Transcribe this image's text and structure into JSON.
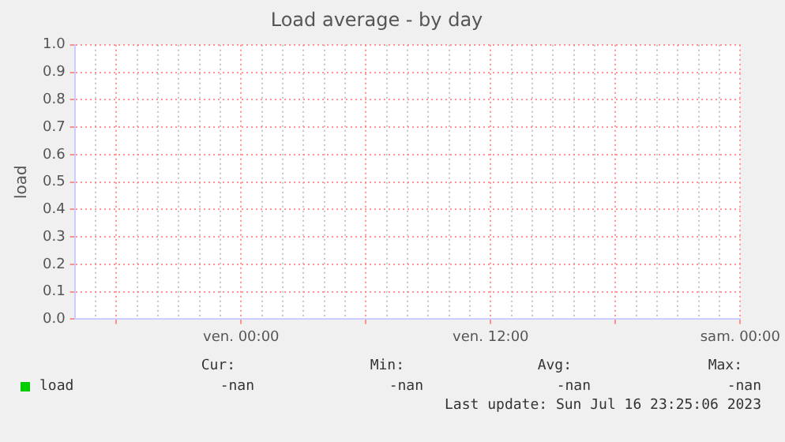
{
  "chart_data": {
    "type": "line",
    "title": "Load average - by day",
    "ylabel": "load",
    "categories": [
      null,
      null,
      null,
      null,
      null,
      null,
      null,
      null,
      "ven. 00:00",
      null,
      null,
      null,
      null,
      null,
      null,
      null,
      null,
      null,
      null,
      null,
      "ven. 12:00",
      null,
      null,
      null,
      null,
      null,
      null,
      null,
      null,
      null,
      null,
      null,
      "sam. 00:00"
    ],
    "series": [
      {
        "name": "load",
        "color": "#00cc00",
        "values": [
          null,
          null,
          null,
          null,
          null,
          null,
          null,
          null,
          null,
          null,
          null,
          null,
          null,
          null,
          null,
          null,
          null,
          null,
          null,
          null,
          null,
          null,
          null,
          null,
          null,
          null,
          null,
          null,
          null,
          null,
          null,
          null,
          null
        ]
      }
    ],
    "ylim": [
      0,
      1
    ],
    "yticks": [
      {
        "value": 0,
        "label": "0.0"
      },
      {
        "value": 0.1,
        "label": "0.1"
      },
      {
        "value": 0.2,
        "label": "0.2"
      },
      {
        "value": 0.3,
        "label": "0.3"
      },
      {
        "value": 0.4,
        "label": "0.4"
      },
      {
        "value": 0.5,
        "label": "0.5"
      },
      {
        "value": 0.6,
        "label": "0.6"
      },
      {
        "value": 0.7,
        "label": "0.7"
      },
      {
        "value": 0.8,
        "label": "0.8"
      },
      {
        "value": 0.9,
        "label": "0.9"
      },
      {
        "value": 1,
        "label": "1.0"
      }
    ],
    "grid": true,
    "legend": "bottom left",
    "annotations": [
      "Cur:",
      "Min:",
      "Avg:",
      "Max:",
      "-nan",
      "-nan",
      "-nan",
      "-nan",
      "Last update: Sun Jul 16 23:25:06 2023"
    ]
  }
}
